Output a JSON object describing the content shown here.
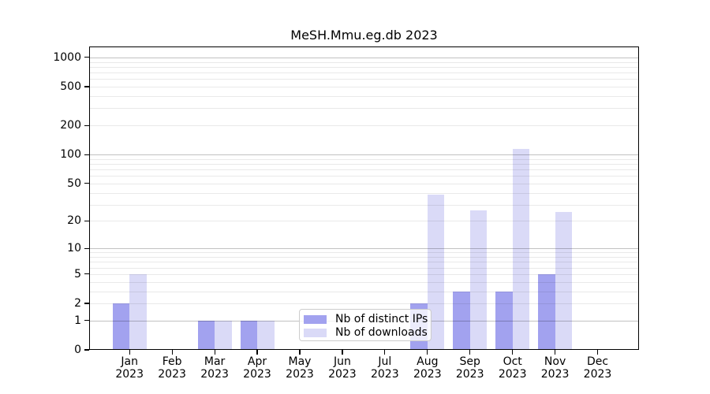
{
  "title": "MeSH.Mmu.eg.db 2023",
  "chart_data": {
    "type": "bar",
    "title": "MeSH.Mmu.eg.db 2023",
    "categories": [
      "Jan",
      "Feb",
      "Mar",
      "Apr",
      "May",
      "Jun",
      "Jul",
      "Aug",
      "Sep",
      "Oct",
      "Nov",
      "Dec"
    ],
    "x_year_label": "2023",
    "series": [
      {
        "name": "Nb of distinct IPs",
        "color": "#a2a2ef",
        "values": [
          2,
          0,
          1,
          1,
          0,
          0,
          0,
          2,
          3,
          3,
          5,
          0
        ]
      },
      {
        "name": "Nb of downloads",
        "color": "#dadaf7",
        "values": [
          5,
          0,
          1,
          1,
          0,
          0,
          0,
          38,
          26,
          115,
          25,
          0
        ]
      }
    ],
    "y_scale": "log10(1+x)",
    "y_ticks": [
      0,
      1,
      2,
      5,
      10,
      20,
      50,
      100,
      200,
      500,
      1000
    ],
    "y_major_gridlines": [
      1,
      10,
      100,
      1000
    ],
    "ylim": [
      0,
      1295
    ],
    "grid": true,
    "legend_position": "bottom-center",
    "colors": {
      "axis": "#000000",
      "grid_major": "#c2c2c2",
      "grid_minor": "#e9e9e9",
      "legend_border": "#cccccc",
      "background": "#ffffff"
    }
  }
}
